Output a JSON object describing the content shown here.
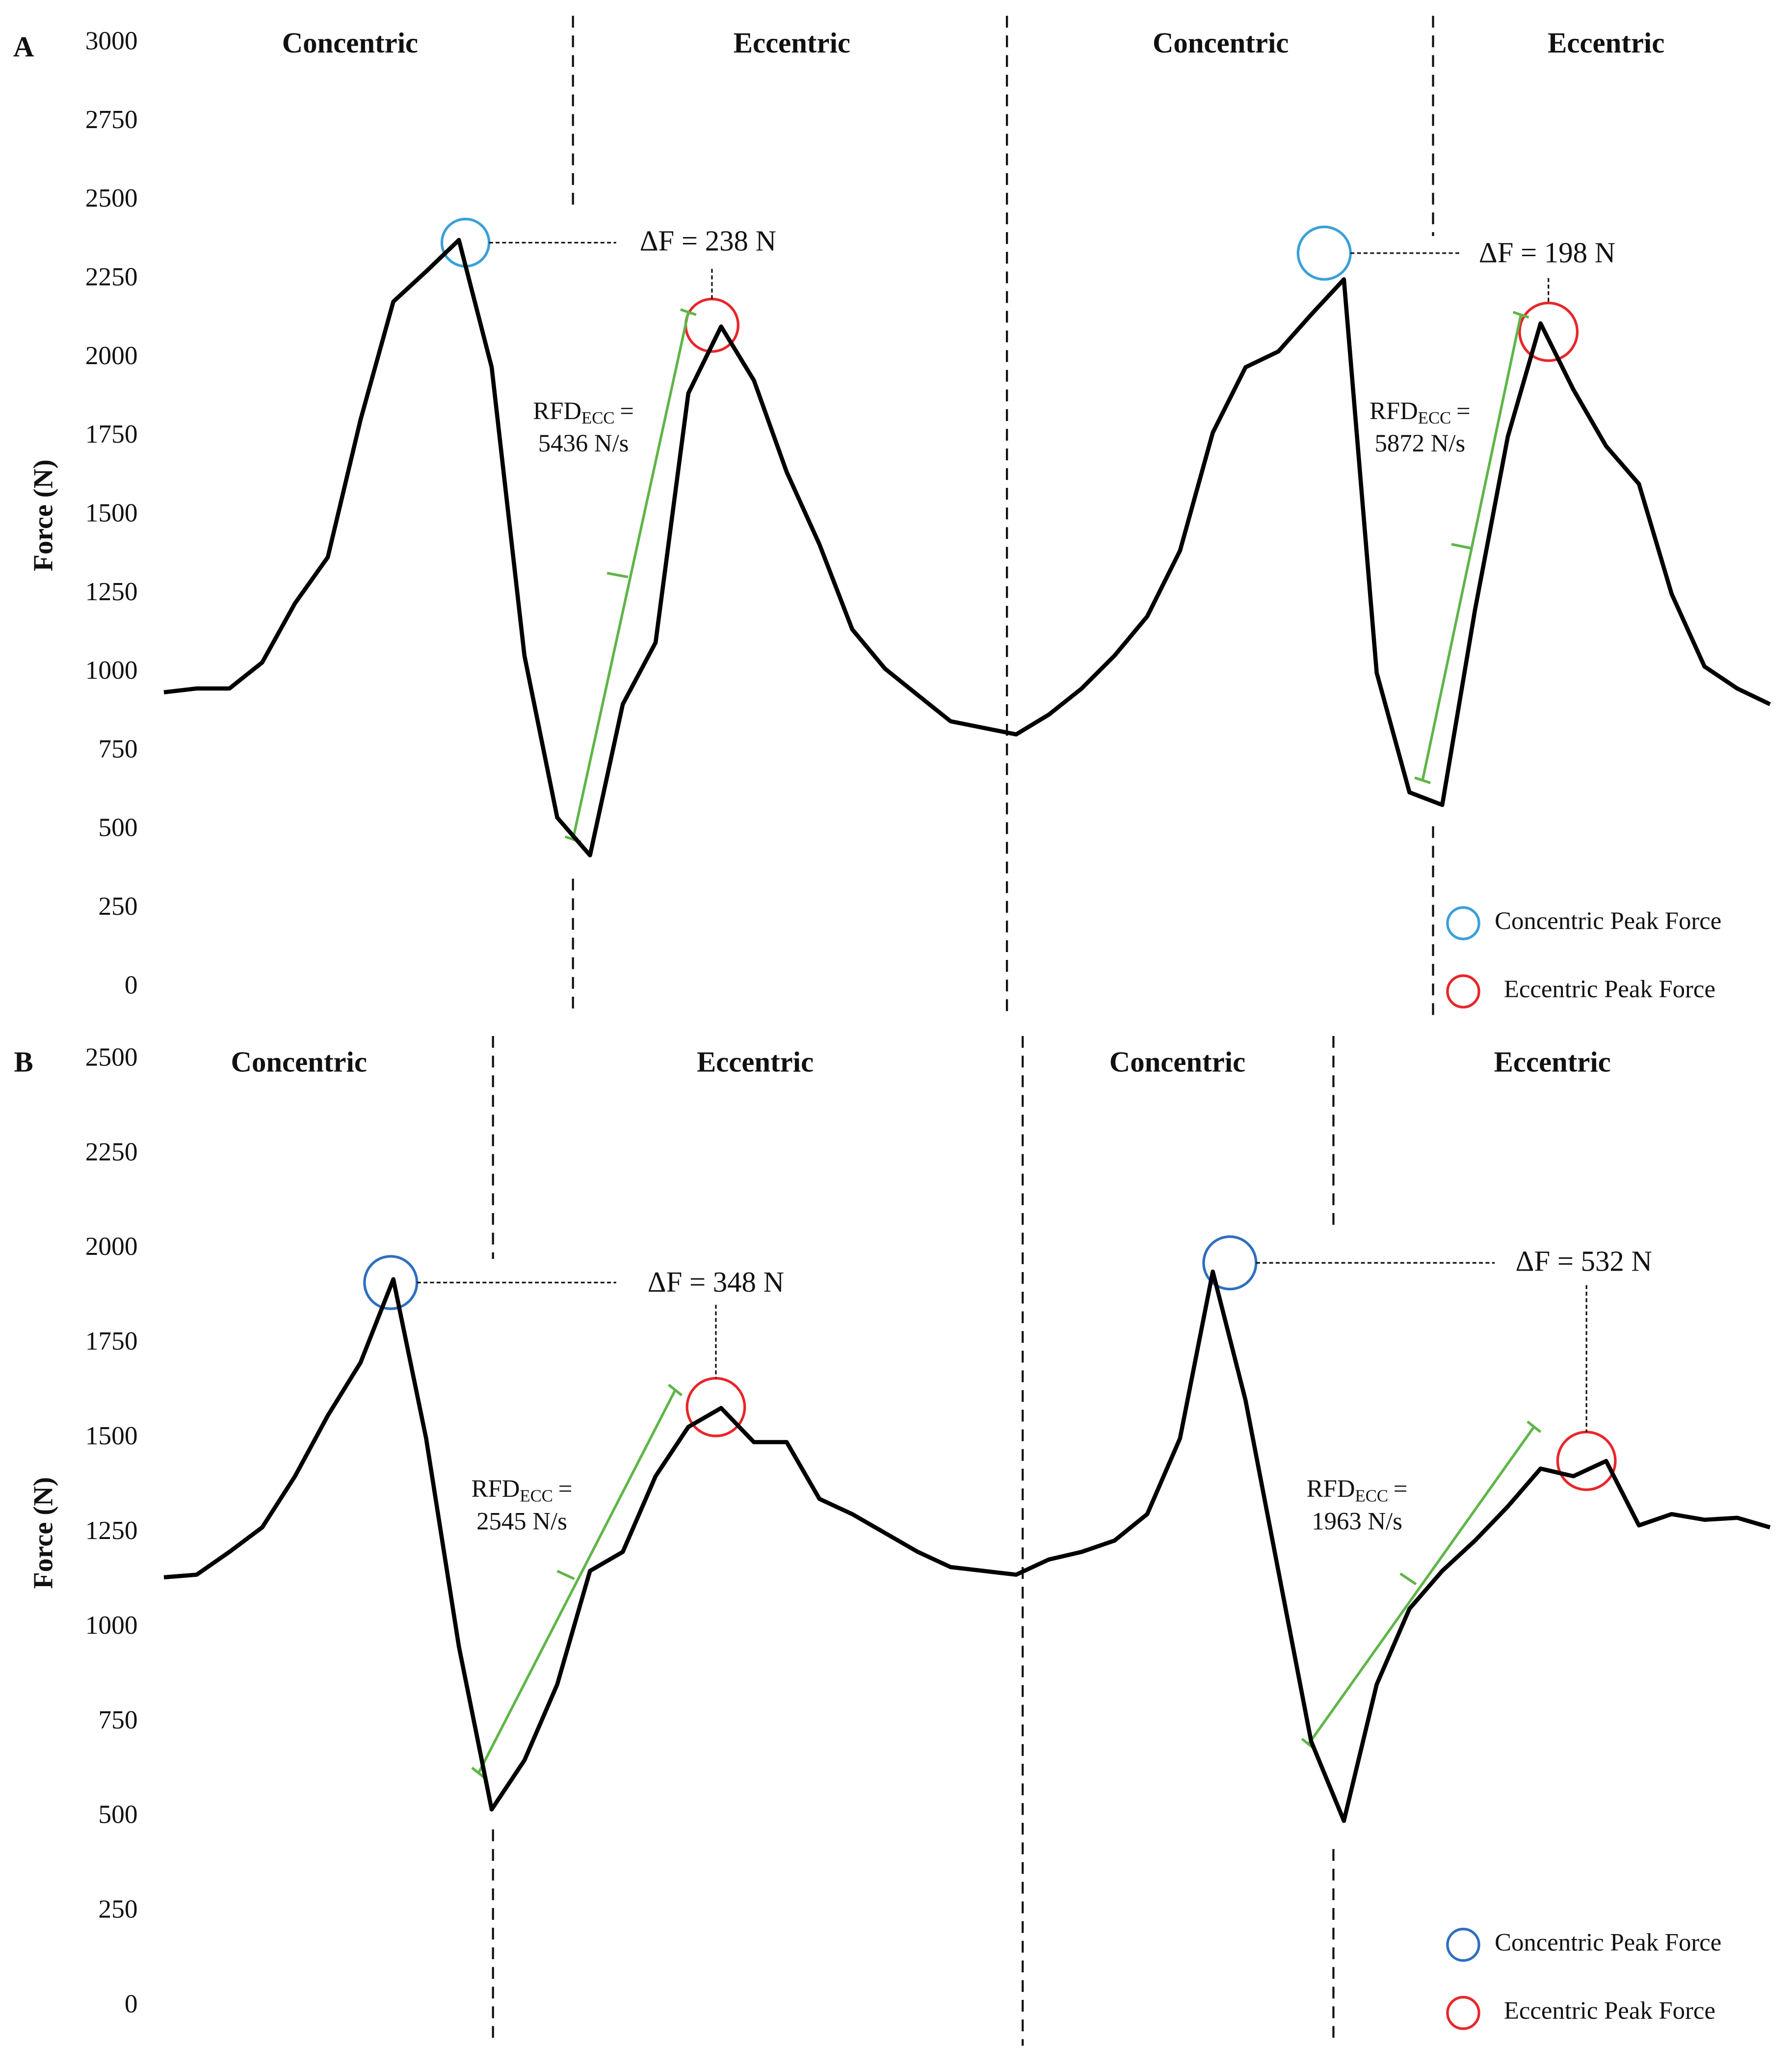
{
  "chart_data": [
    {
      "type": "line",
      "panel_label": "A",
      "ylabel": "Force (N)",
      "phase_labels": [
        "Concentric",
        "Eccentric",
        "Concentric",
        "Eccentric"
      ],
      "annotations": [
        "ΔF = 238 N",
        "ΔF = 198 N"
      ],
      "rfd_labels": [
        {
          "text": "RFD",
          "subscript": "ECC",
          "suffix": "=",
          "value": "5436 N/s"
        },
        {
          "text": "RFD",
          "subscript": "ECC",
          "suffix": "=",
          "value": "5872 N/s"
        }
      ],
      "legend": [
        {
          "name": "Concentric Peak Force",
          "color": "#3aa0d8"
        },
        {
          "name": "Eccentric Peak Force",
          "color": "#e8262a"
        }
      ],
      "color": "#000000",
      "values": [
        938,
        950,
        950,
        1033,
        1221,
        1367,
        1804,
        2179,
        2275,
        2375,
        1971,
        1054,
        540,
        420,
        900,
        1096,
        1888,
        2100,
        1929,
        1638,
        1408,
        1138,
        1013,
        929,
        846,
        825,
        804,
        867,
        950,
        1054,
        1179,
        1388,
        1763,
        1971,
        2021,
        2138,
        2250,
        1000,
        620,
        580,
        1200,
        1750,
        2110,
        1900,
        1720,
        1600,
        1250,
        1020,
        950,
        900
      ],
      "ylim": [
        0,
        3000
      ],
      "yticks": [
        0,
        250,
        500,
        750,
        1000,
        1250,
        1500,
        1750,
        2000,
        2250,
        2500,
        2750,
        3000
      ]
    },
    {
      "type": "line",
      "panel_label": "B",
      "ylabel": "Force (N)",
      "phase_labels": [
        "Concentric",
        "Eccentric",
        "Concentric",
        "Eccentric"
      ],
      "annotations": [
        "ΔF = 348 N",
        "ΔF = 532 N"
      ],
      "rfd_labels": [
        {
          "text": "RFD",
          "subscript": "ECC",
          "suffix": "=",
          "value": "2545 N/s"
        },
        {
          "text": "RFD",
          "subscript": "ECC",
          "suffix": "=",
          "value": "1963 N/s"
        }
      ],
      "legend": [
        {
          "name": "Concentric Peak Force",
          "color": "#2f6fbf"
        },
        {
          "name": "Eccentric Peak Force",
          "color": "#e8262a"
        }
      ],
      "color": "#000000",
      "values": [
        1133,
        1140,
        1200,
        1265,
        1400,
        1560,
        1700,
        1920,
        1500,
        950,
        520,
        650,
        850,
        1150,
        1200,
        1400,
        1530,
        1580,
        1490,
        1490,
        1340,
        1300,
        1250,
        1200,
        1160,
        1150,
        1140,
        1180,
        1200,
        1230,
        1300,
        1500,
        1940,
        1600,
        1150,
        700,
        490,
        850,
        1050,
        1150,
        1230,
        1320,
        1420,
        1400,
        1440,
        1270,
        1300,
        1285,
        1290,
        1265
      ],
      "ylim": [
        0,
        2500
      ],
      "yticks": [
        0,
        250,
        500,
        750,
        1000,
        1250,
        1500,
        1750,
        2000,
        2250,
        2500
      ]
    }
  ]
}
